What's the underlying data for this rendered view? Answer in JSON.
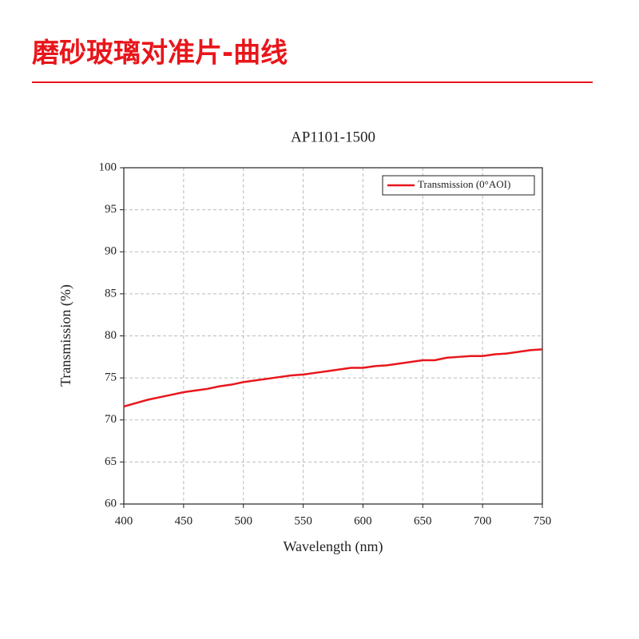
{
  "header": {
    "title": "磨砂玻璃对准片-曲线"
  },
  "chart_data": {
    "type": "line",
    "title": "AP1101-1500",
    "x_label": "Wavelength (nm)",
    "y_label": "Transmission (%)",
    "x": [
      400,
      410,
      420,
      430,
      440,
      450,
      460,
      470,
      480,
      490,
      500,
      510,
      520,
      530,
      540,
      550,
      560,
      570,
      580,
      590,
      600,
      610,
      620,
      630,
      640,
      650,
      660,
      670,
      680,
      690,
      700,
      710,
      720,
      730,
      740,
      750
    ],
    "series": [
      {
        "name": "Transmission (0°AOI)",
        "color": "#e8161b",
        "values": [
          71.6,
          72.0,
          72.4,
          72.7,
          73.0,
          73.3,
          73.5,
          73.7,
          74.0,
          74.2,
          74.5,
          74.7,
          74.9,
          75.1,
          75.3,
          75.4,
          75.6,
          75.8,
          76.0,
          76.2,
          76.2,
          76.4,
          76.5,
          76.7,
          76.9,
          77.1,
          77.1,
          77.4,
          77.5,
          77.6,
          77.6,
          77.8,
          77.9,
          78.1,
          78.3,
          78.4
        ]
      }
    ],
    "xlim": [
      400,
      750
    ],
    "xticks": [
      400,
      450,
      500,
      550,
      600,
      650,
      700,
      750
    ],
    "ylim": [
      60,
      100
    ],
    "yticks": [
      60,
      65,
      70,
      75,
      80,
      85,
      90,
      95,
      100
    ],
    "grid": true,
    "legend": "upper right"
  }
}
